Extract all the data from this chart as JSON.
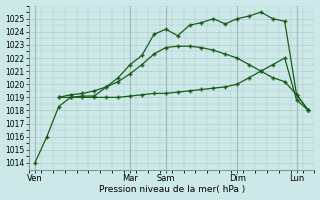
{
  "background_color": "#cce8e8",
  "grid_color": "#b0c8c8",
  "line_color": "#1a5c1a",
  "x_labels": [
    "Ven",
    "Mar",
    "Sam",
    "Dim",
    "Lun"
  ],
  "xlabel": "Pression niveau de la mer( hPa )",
  "ylim": [
    1013.5,
    1026.0
  ],
  "yticks": [
    1014,
    1015,
    1016,
    1017,
    1018,
    1019,
    1020,
    1021,
    1022,
    1023,
    1024,
    1025
  ],
  "n_points": 24,
  "x_day_positions": [
    0,
    8,
    11,
    17,
    22
  ],
  "series1_x": [
    0,
    1,
    2,
    3,
    4,
    5,
    6,
    7,
    8,
    9,
    10,
    11,
    12,
    13,
    14,
    15,
    16,
    17,
    18,
    19,
    20,
    21,
    22,
    23
  ],
  "series1_y": [
    1014.0,
    1016.0,
    1018.3,
    1019.0,
    1019.1,
    1019.1,
    1019.8,
    1020.5,
    1021.5,
    1022.2,
    1023.8,
    1024.2,
    1023.7,
    1024.5,
    1024.7,
    1025.0,
    1024.6,
    1025.0,
    1025.2,
    1025.5,
    1025.0,
    1024.8,
    1019.2,
    1018.0
  ],
  "series2_x": [
    2,
    3,
    4,
    5,
    6,
    7,
    8,
    9,
    10,
    11,
    12,
    13,
    14,
    15,
    16,
    17,
    18,
    19,
    20,
    21,
    22,
    23
  ],
  "series2_y": [
    1019.0,
    1019.0,
    1019.0,
    1019.0,
    1019.0,
    1019.0,
    1019.1,
    1019.2,
    1019.3,
    1019.3,
    1019.4,
    1019.5,
    1019.6,
    1019.7,
    1019.8,
    1020.0,
    1020.5,
    1021.0,
    1021.5,
    1022.0,
    1018.8,
    1018.0
  ],
  "series3_x": [
    2,
    3,
    4,
    5,
    6,
    7,
    8,
    9,
    10,
    11,
    12,
    13,
    14,
    15,
    16,
    17,
    18,
    19,
    20,
    21,
    22,
    23
  ],
  "series3_y": [
    1019.0,
    1019.2,
    1019.3,
    1019.5,
    1019.8,
    1020.2,
    1020.8,
    1021.5,
    1022.3,
    1022.8,
    1022.9,
    1022.9,
    1022.8,
    1022.6,
    1022.3,
    1022.0,
    1021.5,
    1021.0,
    1020.5,
    1020.2,
    1019.2,
    1018.0
  ]
}
